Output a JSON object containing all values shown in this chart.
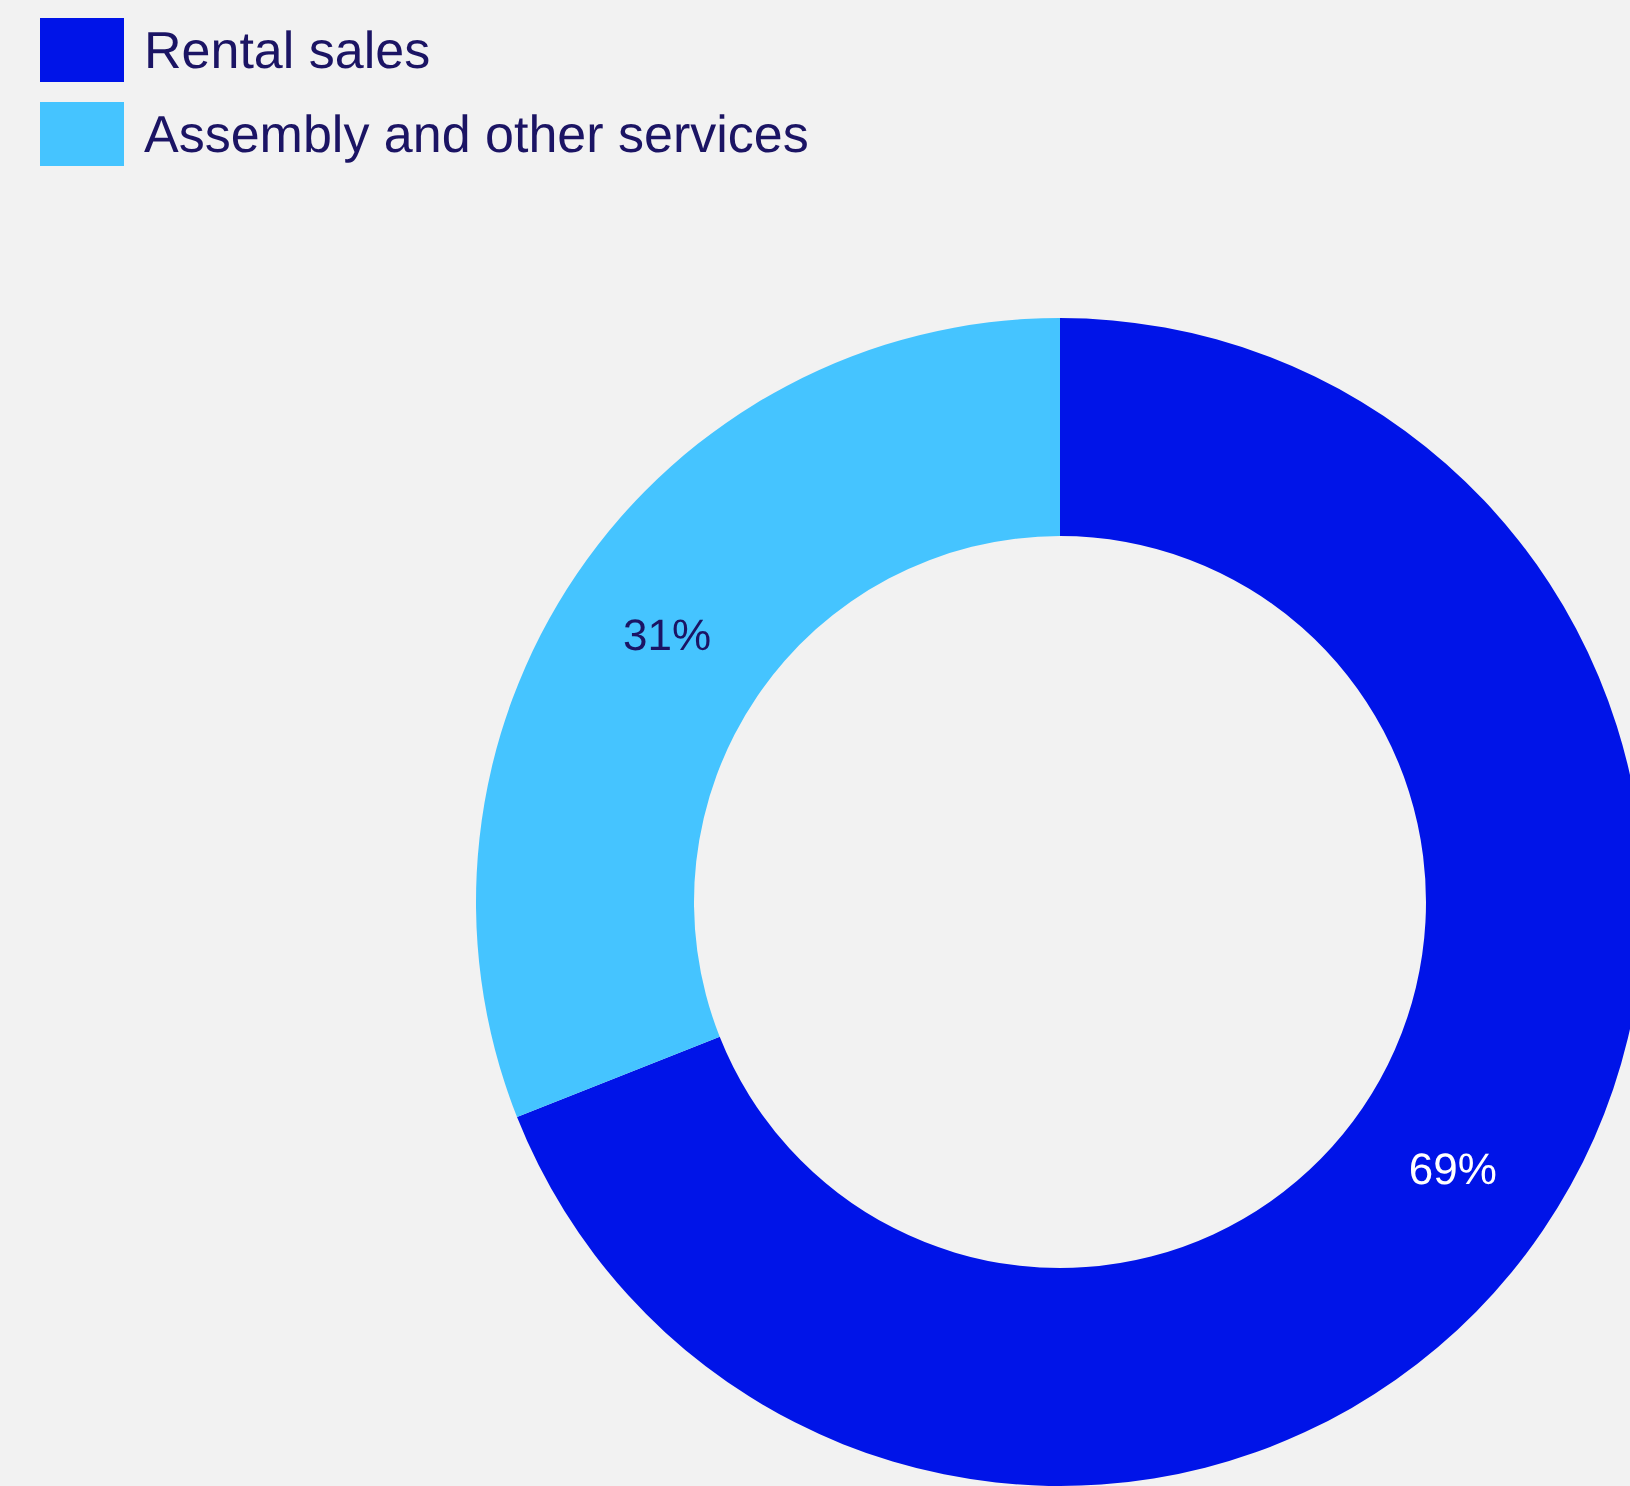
{
  "chart_data": {
    "type": "donut",
    "categories": [
      "Rental sales",
      "Assembly and other services"
    ],
    "values": [
      69,
      31
    ],
    "colors": [
      "#0014e8",
      "#45c4ff"
    ],
    "value_labels": [
      "69%",
      "31%"
    ],
    "legend": "top left"
  }
}
